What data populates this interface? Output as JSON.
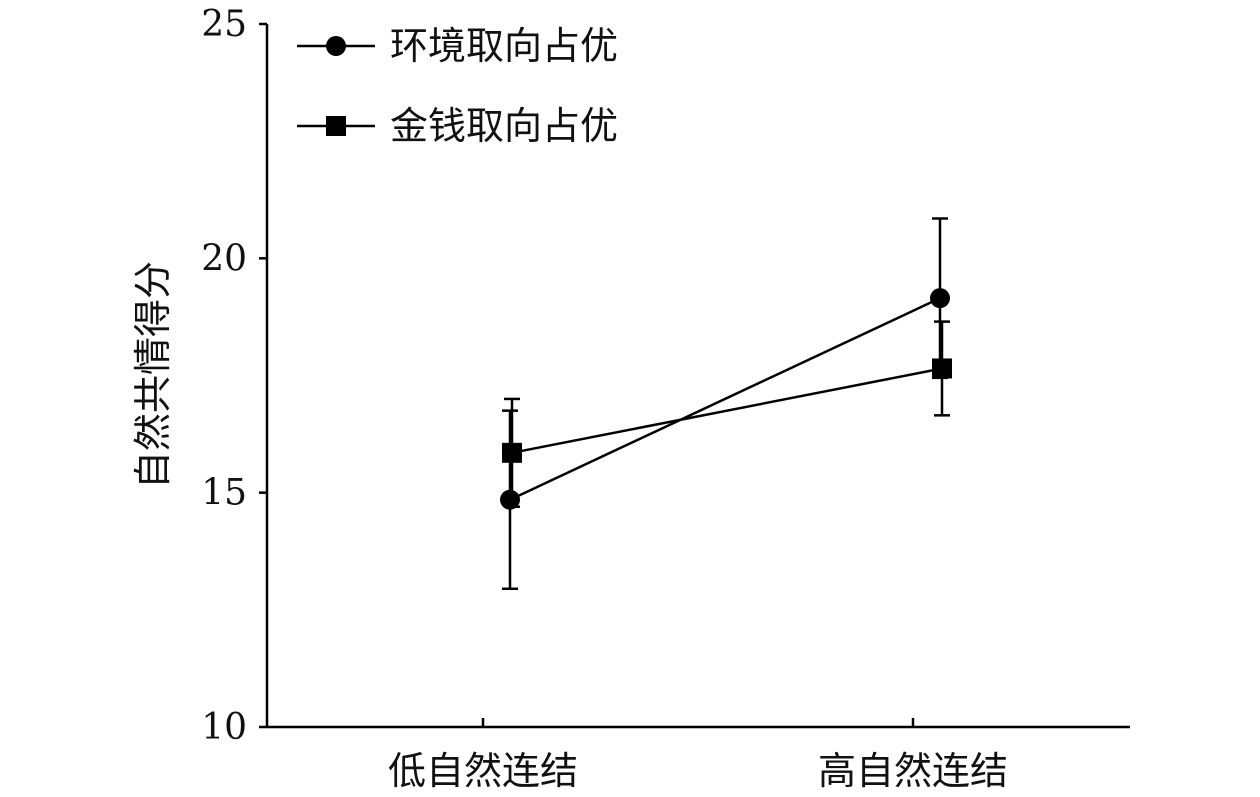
{
  "chart_data": {
    "type": "line",
    "title": "",
    "xlabel": "",
    "ylabel": "自然共情得分",
    "categories": [
      "低自然连结",
      "高自然连结"
    ],
    "ylim": [
      10,
      25
    ],
    "yticks": [
      10,
      15,
      20,
      25
    ],
    "grid": false,
    "legend_position": "top-left",
    "series": [
      {
        "name": "环境取向占优",
        "marker": "circle",
        "values": [
          14.85,
          19.15
        ],
        "error_low": [
          12.95,
          17.45
        ],
        "error_high": [
          16.75,
          20.85
        ],
        "color": "#000000"
      },
      {
        "name": "金钱取向占优",
        "marker": "square",
        "values": [
          15.85,
          17.65
        ],
        "error_low": [
          14.7,
          16.65
        ],
        "error_high": [
          17.0,
          18.65
        ],
        "color": "#000000"
      }
    ]
  }
}
